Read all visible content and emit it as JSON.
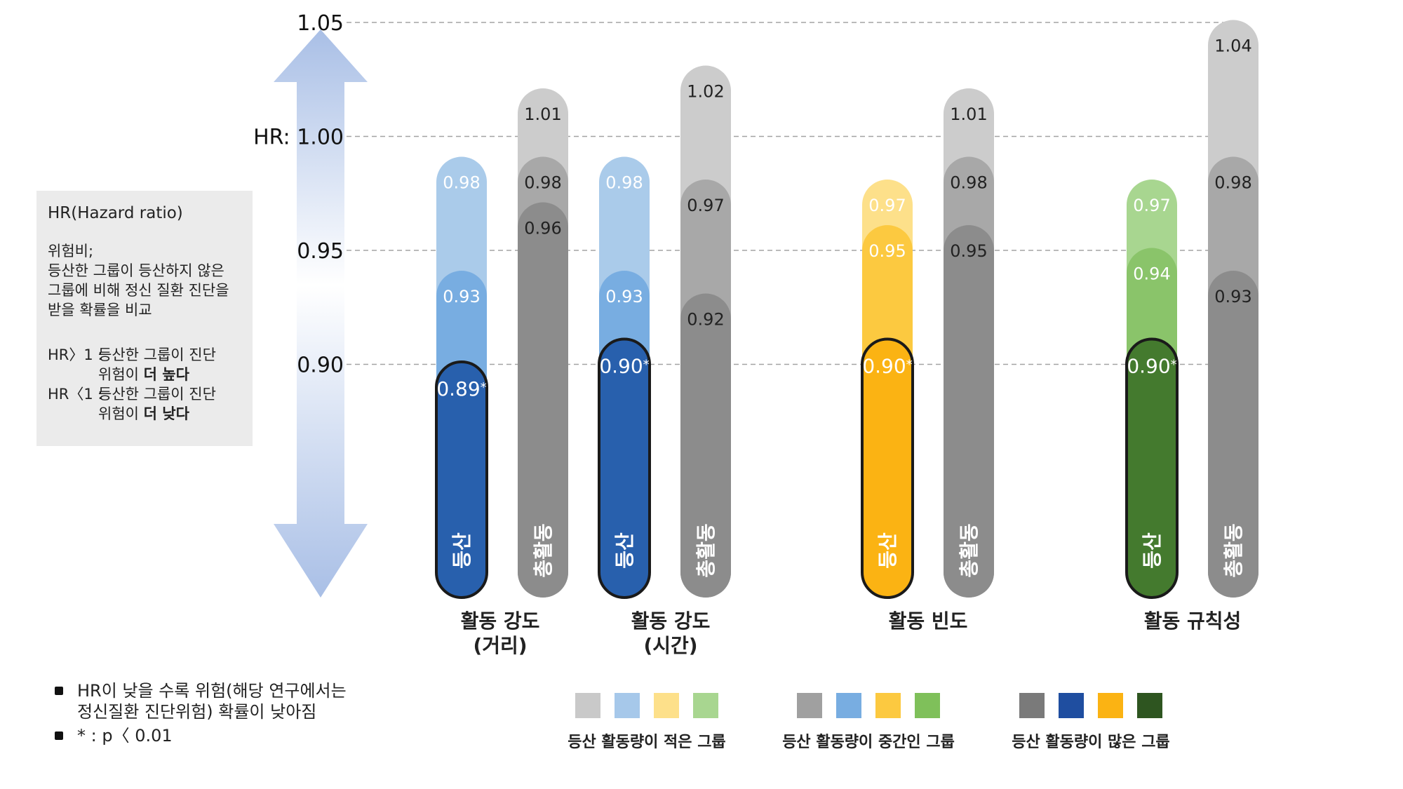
{
  "chart_data": {
    "type": "bar",
    "title": "",
    "ylabel": "",
    "ylim": [
      0.85,
      1.05
    ],
    "yticks": [
      {
        "value": 1.05,
        "label": "1.05"
      },
      {
        "value": 1.0,
        "label": "HR: 1.00"
      },
      {
        "value": 0.95,
        "label": "0.95"
      },
      {
        "value": 0.9,
        "label": "0.90"
      }
    ],
    "groups": [
      {
        "label_lines": [
          "활동 강도",
          "(거리)"
        ],
        "bars": [
          {
            "name": "등산",
            "color_low": "#aacbea",
            "color_mid": "#78ade1",
            "color_high": "#2860ad",
            "levels": [
              {
                "value": 0.98,
                "label": "0.98"
              },
              {
                "value": 0.93,
                "label": "0.93"
              },
              {
                "value": 0.89,
                "label": "0.89*"
              }
            ]
          },
          {
            "name": "총활동",
            "color_low": "#cccccc",
            "color_mid": "#a8a8a8",
            "color_high": "#8c8c8c",
            "levels": [
              {
                "value": 1.01,
                "label": "1.01"
              },
              {
                "value": 0.98,
                "label": "0.98"
              },
              {
                "value": 0.96,
                "label": "0.96"
              }
            ]
          }
        ]
      },
      {
        "label_lines": [
          "활동 강도",
          "(시간)"
        ],
        "bars": [
          {
            "name": "등산",
            "color_low": "#aacbea",
            "color_mid": "#78ade1",
            "color_high": "#2860ad",
            "levels": [
              {
                "value": 0.98,
                "label": "0.98"
              },
              {
                "value": 0.93,
                "label": "0.93"
              },
              {
                "value": 0.9,
                "label": "0.90*"
              }
            ]
          },
          {
            "name": "총활동",
            "color_low": "#cccccc",
            "color_mid": "#a8a8a8",
            "color_high": "#8c8c8c",
            "levels": [
              {
                "value": 1.02,
                "label": "1.02"
              },
              {
                "value": 0.97,
                "label": "0.97"
              },
              {
                "value": 0.92,
                "label": "0.92"
              }
            ]
          }
        ]
      },
      {
        "label_lines": [
          "활동 빈도"
        ],
        "bars": [
          {
            "name": "등산",
            "color_low": "#fde08a",
            "color_mid": "#fcc940",
            "color_high": "#fbb313",
            "levels": [
              {
                "value": 0.97,
                "label": "0.97"
              },
              {
                "value": 0.95,
                "label": "0.95"
              },
              {
                "value": 0.9,
                "label": "0.90*"
              }
            ]
          },
          {
            "name": "총활동",
            "color_low": "#cccccc",
            "color_mid": "#a8a8a8",
            "color_high": "#8c8c8c",
            "levels": [
              {
                "value": 1.01,
                "label": "1.01"
              },
              {
                "value": 0.98,
                "label": "0.98"
              },
              {
                "value": 0.95,
                "label": "0.95"
              }
            ]
          }
        ]
      },
      {
        "label_lines": [
          "활동 규칙성"
        ],
        "bars": [
          {
            "name": "등산",
            "color_low": "#a8d690",
            "color_mid": "#8ac46a",
            "color_high": "#447a2e",
            "levels": [
              {
                "value": 0.97,
                "label": "0.97"
              },
              {
                "value": 0.94,
                "label": "0.94"
              },
              {
                "value": 0.9,
                "label": "0.90*"
              }
            ]
          },
          {
            "name": "총활동",
            "color_low": "#cccccc",
            "color_mid": "#a8a8a8",
            "color_high": "#8c8c8c",
            "levels": [
              {
                "value": 1.04,
                "label": "1.04"
              },
              {
                "value": 0.98,
                "label": "0.98"
              },
              {
                "value": 0.93,
                "label": "0.93"
              }
            ]
          }
        ]
      }
    ],
    "legend": [
      {
        "label": "등산 활동량이 적은 그룹",
        "colors": [
          "#c9c9c9",
          "#a6c8ea",
          "#fde08a",
          "#a8d690"
        ]
      },
      {
        "label": "등산 활동량이 중간인 그룹",
        "colors": [
          "#a0a0a0",
          "#78ade1",
          "#fcc940",
          "#7fc05a"
        ]
      },
      {
        "label": "등산 활동량이 많은 그룹",
        "colors": [
          "#7a7a7a",
          "#1f4ea0",
          "#fbb313",
          "#2e5520"
        ]
      }
    ]
  },
  "infobox": {
    "title": "HR(Hazard ratio)",
    "desc_lines": [
      "위험비;",
      "등산한 그룹이 등산하지 않은",
      "그룹에 비해 정신 질환 진단을",
      "받을 확률을 비교"
    ],
    "gt_key": "HR〉1 :",
    "gt_text_1": "등산한 그룹이 진단",
    "gt_text_2_pre": "위험이 ",
    "gt_text_2_bold": "더 높다",
    "lt_key": "HR〈1 :",
    "lt_text_1": "등산한 그룹이 진단",
    "lt_text_2_pre": "위험이 ",
    "lt_text_2_bold": "더 낮다"
  },
  "notes": {
    "note1_line1": "HR이 낮을 수록 위험(해당 연구에서는",
    "note1_line2": "정신질환 진단위험) 확률이 낮아짐",
    "note2": "* : p〈 0.01"
  }
}
